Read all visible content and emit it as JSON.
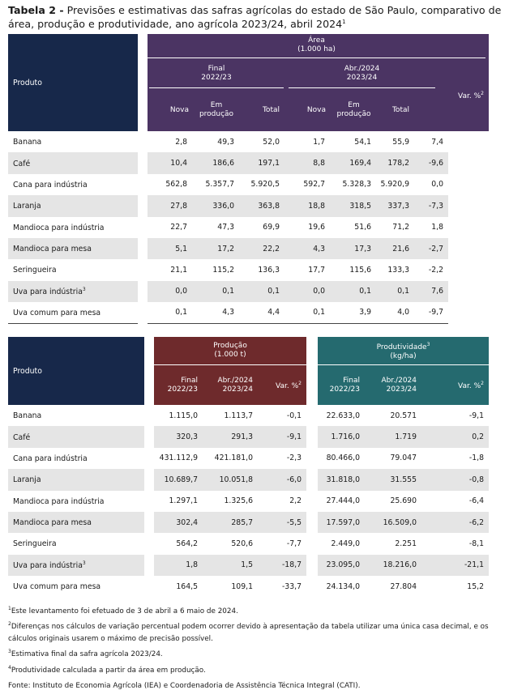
{
  "title": {
    "bold": "Tabela 2 -",
    "text": " Previsões e estimativas das safras agrícolas do estado de São Paulo, comparativo de área, produção e produtividade, ano agrícola 2023/24, abril 2024",
    "sup": "1"
  },
  "table1": {
    "product_header": "Produto",
    "area_line1": "Área",
    "area_line2": "(1.000 ha)",
    "final_line1": "Final",
    "final_line2": "2022/23",
    "abr_line1": "Abr./2024",
    "abr_line2": "2023/24",
    "var_label": "Var. %",
    "var_sup": "2",
    "col_nova": "Nova",
    "col_em_line1": "Em",
    "col_em_line2": "produção",
    "col_total": "Total",
    "rows": [
      {
        "name": "Banana",
        "sup": "",
        "v": [
          "2,8",
          "49,3",
          "52,0",
          "1,7",
          "54,1",
          "55,9",
          "7,4"
        ]
      },
      {
        "name": "Café",
        "sup": "",
        "v": [
          "10,4",
          "186,6",
          "197,1",
          "8,8",
          "169,4",
          "178,2",
          "-9,6"
        ]
      },
      {
        "name": "Cana para indústria",
        "sup": "",
        "v": [
          "562,8",
          "5.357,7",
          "5.920,5",
          "592,7",
          "5.328,3",
          "5.920,9",
          "0,0"
        ]
      },
      {
        "name": "Laranja",
        "sup": "",
        "v": [
          "27,8",
          "336,0",
          "363,8",
          "18,8",
          "318,5",
          "337,3",
          "-7,3"
        ]
      },
      {
        "name": "Mandioca para indústria",
        "sup": "",
        "v": [
          "22,7",
          "47,3",
          "69,9",
          "19,6",
          "51,6",
          "71,2",
          "1,8"
        ]
      },
      {
        "name": "Mandioca para mesa",
        "sup": "",
        "v": [
          "5,1",
          "17,2",
          "22,2",
          "4,3",
          "17,3",
          "21,6",
          "-2,7"
        ]
      },
      {
        "name": "Seringueira",
        "sup": "",
        "v": [
          "21,1",
          "115,2",
          "136,3",
          "17,7",
          "115,6",
          "133,3",
          "-2,2"
        ]
      },
      {
        "name": "Uva para indústria",
        "sup": "3",
        "v": [
          "0,0",
          "0,1",
          "0,1",
          "0,0",
          "0,1",
          "0,1",
          "7,6"
        ]
      },
      {
        "name": "Uva comum para mesa",
        "sup": "",
        "v": [
          "0,1",
          "4,3",
          "4,4",
          "0,1",
          "3,9",
          "4,0",
          "-9,7"
        ]
      }
    ]
  },
  "table2": {
    "product_header": "Produto",
    "prod_line1": "Produção",
    "prod_line2": "(1.000 t)",
    "produt_line1": "Produtividade",
    "produt_sup": "3",
    "produt_line2": "(kg/ha)",
    "final_line1": "Final",
    "final_line2": "2022/23",
    "abr_line1": "Abr./2024",
    "abr_line2": "2023/24",
    "var_label": "Var. %",
    "var_sup": "2",
    "rows": [
      {
        "name": "Banana",
        "sup": "",
        "v": [
          "1.115,0",
          "1.113,7",
          "-0,1",
          "22.633,0",
          "20.571",
          "-9,1"
        ]
      },
      {
        "name": "Café",
        "sup": "",
        "v": [
          "320,3",
          "291,3",
          "-9,1",
          "1.716,0",
          "1.719",
          "0,2"
        ]
      },
      {
        "name": "Cana para indústria",
        "sup": "",
        "v": [
          "431.112,9",
          "421.181,0",
          "-2,3",
          "80.466,0",
          "79.047",
          "-1,8"
        ]
      },
      {
        "name": "Laranja",
        "sup": "",
        "v": [
          "10.689,7",
          "10.051,8",
          "-6,0",
          "31.818,0",
          "31.555",
          "-0,8"
        ]
      },
      {
        "name": "Mandioca para indústria",
        "sup": "",
        "v": [
          "1.297,1",
          "1.325,6",
          "2,2",
          "27.444,0",
          "25.690",
          "-6,4"
        ]
      },
      {
        "name": "Mandioca para mesa",
        "sup": "",
        "v": [
          "302,4",
          "285,7",
          "-5,5",
          "17.597,0",
          "16.509,0",
          "-6,2"
        ]
      },
      {
        "name": "Seringueira",
        "sup": "",
        "v": [
          "564,2",
          "520,6",
          "-7,7",
          "2.449,0",
          "2.251",
          "-8,1"
        ]
      },
      {
        "name": "Uva para indústria",
        "sup": "3",
        "v": [
          "1,8",
          "1,5",
          "-18,7",
          "23.095,0",
          "18.216,0",
          "-21,1"
        ]
      },
      {
        "name": "Uva comum para mesa",
        "sup": "",
        "v": [
          "164,5",
          "109,1",
          "-33,7",
          "24.134,0",
          "27.804",
          "15,2"
        ]
      }
    ]
  },
  "footnotes": [
    {
      "sup": "1",
      "text": "Este levantamento foi efetuado de 3 de abril a 6 maio de 2024."
    },
    {
      "sup": "2",
      "text": "Diferenças nos cálculos de variação percentual podem ocorrer devido à apresentação da tabela utilizar uma única casa decimal, e os cálculos originais usarem o máximo de precisão possível."
    },
    {
      "sup": "3",
      "text": "Estimativa final da safra agrícola 2023/24."
    },
    {
      "sup": "4",
      "text": "Produtividade calculada a partir da área em produção."
    },
    {
      "sup": "",
      "text": "Fonte: Instituto de Economia Agrícola (IEA) e Coordenadoria de Assistência Técnica Integral (CATI)."
    }
  ],
  "colors": {
    "navy": "#17284a",
    "purple": "#4b3463",
    "maroon": "#6e2a2c",
    "teal": "#256a6f",
    "row_shade": "#e5e5e5"
  }
}
